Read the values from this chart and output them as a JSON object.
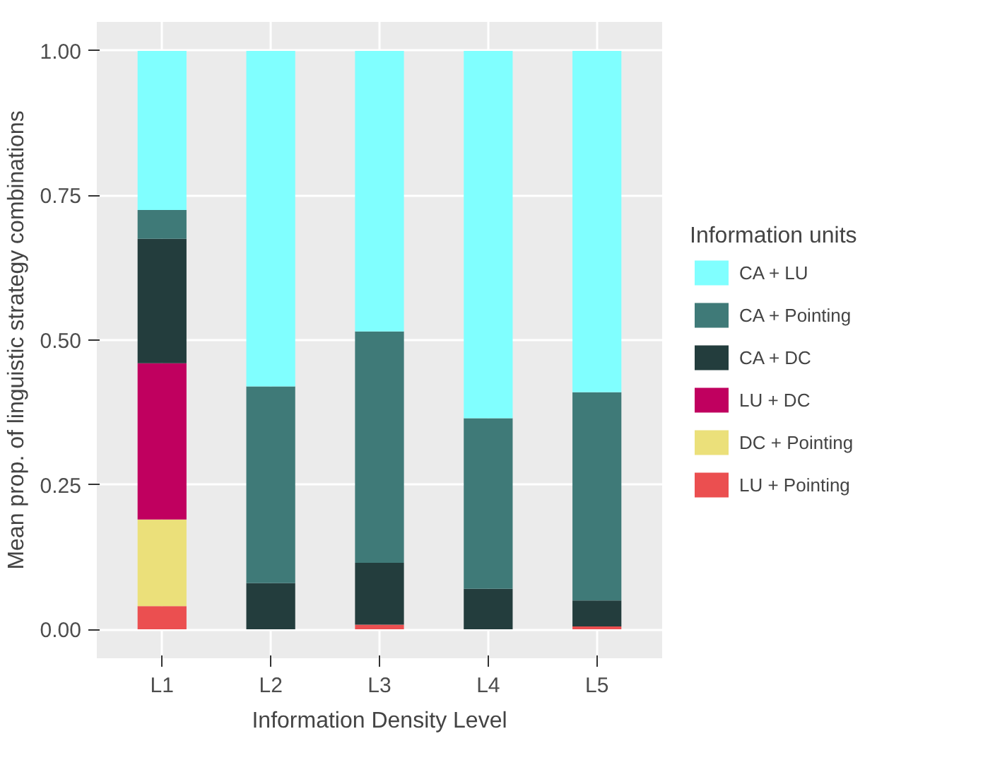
{
  "chart_data": {
    "type": "bar",
    "stacked": true,
    "xlabel": "Information Density Level",
    "ylabel": "Mean prop. of linguistic strategy combinations",
    "legend_title": "Information units",
    "categories": [
      "L1",
      "L2",
      "L3",
      "L4",
      "L5"
    ],
    "series": [
      {
        "name": "LU + Pointing",
        "color": "#eb4f50",
        "values": [
          0.04,
          0,
          0.008,
          0,
          0.005
        ]
      },
      {
        "name": "DC + Pointing",
        "color": "#ebe07a",
        "values": [
          0.15,
          0,
          0,
          0,
          0
        ]
      },
      {
        "name": "LU + DC",
        "color": "#c0005f",
        "values": [
          0.27,
          0,
          0,
          0,
          0
        ]
      },
      {
        "name": "CA + DC",
        "color": "#233d3d",
        "values": [
          0.215,
          0.08,
          0.107,
          0.07,
          0.045
        ]
      },
      {
        "name": "CA + Pointing",
        "color": "#3f7a78",
        "values": [
          0.05,
          0.34,
          0.4,
          0.295,
          0.36
        ]
      },
      {
        "name": "CA + LU",
        "color": "#80ffff",
        "values": [
          0.275,
          0.58,
          0.485,
          0.635,
          0.59
        ]
      }
    ],
    "ylim": [
      -0.05,
      1.05
    ],
    "yticks": [
      {
        "value": 0,
        "label": "0.00"
      },
      {
        "value": 0.25,
        "label": "0.25"
      },
      {
        "value": 0.5,
        "label": "0.50"
      },
      {
        "value": 0.75,
        "label": "0.75"
      },
      {
        "value": 1,
        "label": "1.00"
      }
    ],
    "grid": true,
    "legend": "right"
  }
}
